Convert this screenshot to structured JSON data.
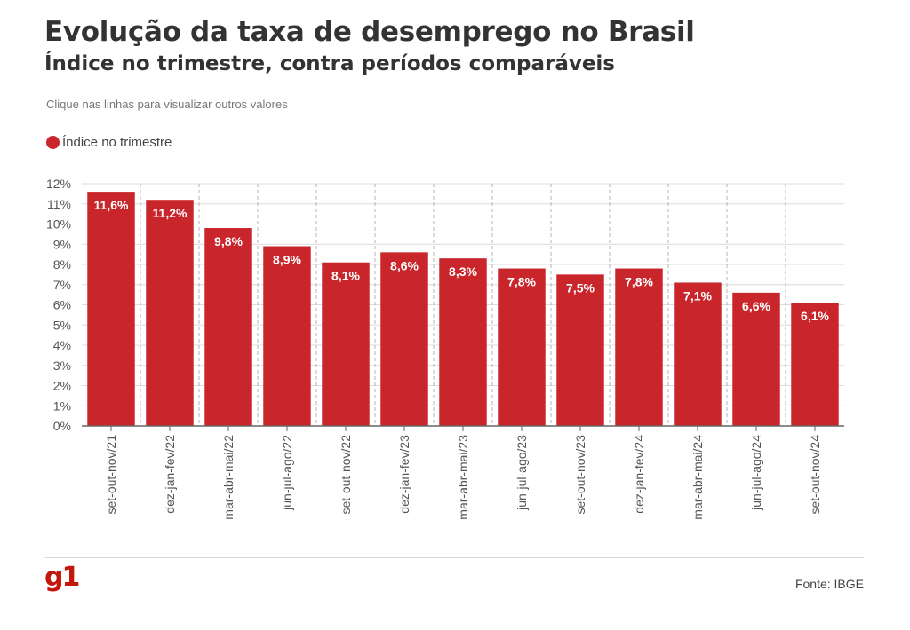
{
  "header": {
    "title": "Evolução da taxa de desemprego no Brasil",
    "subtitle": "Índice no trimestre, contra períodos comparáveis",
    "note": "Clique nas linhas para visualizar outros valores"
  },
  "colors": {
    "bar": "#c9262c",
    "logo": "#c4170c",
    "grid": "#dcdcdc",
    "axis": "#666666"
  },
  "footer": {
    "logo_text": "g1",
    "source": "Fonte: IBGE"
  },
  "chart_data": {
    "type": "bar",
    "title": "Evolução da taxa de desemprego no Brasil",
    "subtitle": "Índice no trimestre, contra períodos comparáveis",
    "xlabel": "",
    "ylabel": "",
    "ylim": [
      0,
      12
    ],
    "yticks": [
      "0%",
      "1%",
      "2%",
      "3%",
      "4%",
      "5%",
      "6%",
      "7%",
      "8%",
      "9%",
      "10%",
      "11%",
      "12%"
    ],
    "grid": true,
    "legend": "top-left",
    "categories": [
      "set-out-nov/21",
      "dez-jan-fev/22",
      "mar-abr-mai/22",
      "jun-jul-ago/22",
      "set-out-nov/22",
      "dez-jan-fev/23",
      "mar-abr-mai/23",
      "jun-jul-ago/23",
      "set-out-nov/23",
      "dez-jan-fev/24",
      "mar-abr-mai/24",
      "jun-jul-ago/24",
      "set-out-nov/24"
    ],
    "series": [
      {
        "name": "Índice no trimestre",
        "values": [
          11.6,
          11.2,
          9.8,
          8.9,
          8.1,
          8.6,
          8.3,
          7.8,
          7.5,
          7.8,
          7.1,
          6.6,
          6.1
        ],
        "labels": [
          "11,6%",
          "11,2%",
          "9,8%",
          "8,9%",
          "8,1%",
          "8,6%",
          "8,3%",
          "7,8%",
          "7,5%",
          "7,8%",
          "7,1%",
          "6,6%",
          "6,1%"
        ]
      }
    ]
  }
}
